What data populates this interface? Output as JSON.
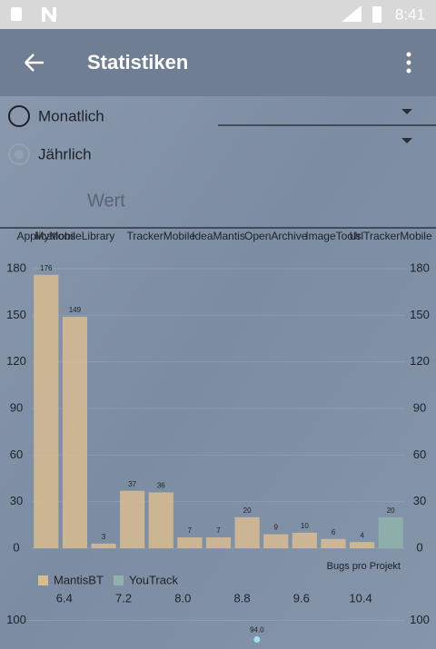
{
  "status_bar": {
    "time": "8:41"
  },
  "app_bar": {
    "title": "Statistiken"
  },
  "options": [
    "Monatlich",
    "Jährlich"
  ],
  "input": {
    "placeholder": "Wert"
  },
  "chart_data": [
    {
      "type": "bar",
      "categories": [
        "Applications",
        "MyMobileLibrary",
        null,
        null,
        "TrackerMobile",
        null,
        "IdeaMantis",
        null,
        "OpenArchive",
        null,
        "ImageTools",
        null,
        "UrlTrackerMobile"
      ],
      "series": [
        {
          "name": "MantisBT",
          "color": "#d9bc91",
          "values": [
            176,
            149,
            3,
            37,
            36,
            7,
            7,
            20,
            9,
            10,
            6,
            4,
            null
          ]
        },
        {
          "name": "YouTrack",
          "color": "#8fb3aa",
          "values": [
            null,
            null,
            null,
            null,
            null,
            null,
            null,
            null,
            null,
            null,
            null,
            null,
            20
          ]
        }
      ],
      "ylim": [
        0,
        180
      ],
      "yticks": [
        0,
        30,
        60,
        90,
        120,
        150,
        180
      ],
      "description": "Bugs pro Projekt",
      "legend": "bottom-left",
      "grid": true
    },
    {
      "type": "scatter",
      "x": [
        9
      ],
      "values": [
        94
      ],
      "value_labels": [
        "94.0"
      ],
      "color": "#9fe0f0",
      "xlim": [
        5.9,
        11.0
      ],
      "xticks": [
        6.4,
        7.2,
        {
          "value": 8,
          "label": "8.0"
        },
        8.8,
        9.6,
        10.4
      ],
      "ylim": [
        91,
        105
      ],
      "yticks": [
        100
      ]
    }
  ]
}
